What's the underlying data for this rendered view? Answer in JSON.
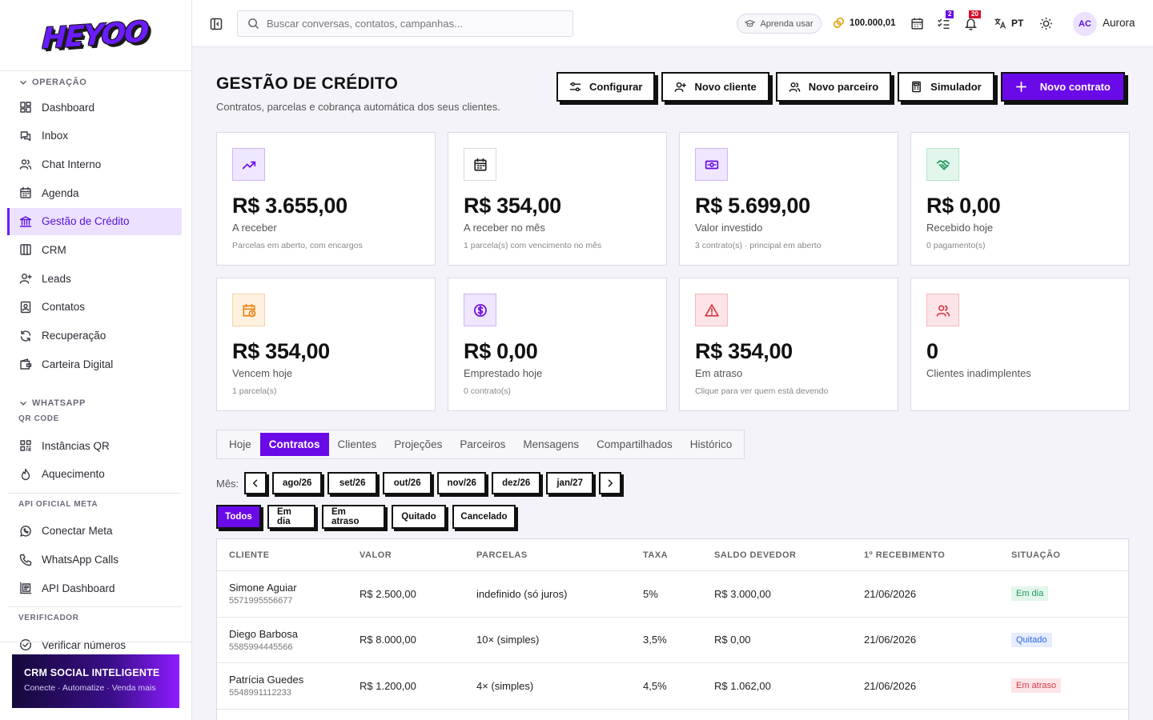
{
  "brand": {
    "logo_text": "HEYOO"
  },
  "sidebar": {
    "sections": [
      {
        "title": "OPERAÇÃO",
        "items": [
          {
            "label": "Dashboard",
            "icon": "dashboard-icon"
          },
          {
            "label": "Inbox",
            "icon": "inbox-icon"
          },
          {
            "label": "Chat Interno",
            "icon": "users-icon"
          },
          {
            "label": "Agenda",
            "icon": "calendar-icon"
          },
          {
            "label": "Gestão de Crédito",
            "icon": "bank-icon",
            "active": true
          },
          {
            "label": "CRM",
            "icon": "columns-icon"
          },
          {
            "label": "Leads",
            "icon": "user-plus-icon"
          },
          {
            "label": "Contatos",
            "icon": "contact-card-icon"
          },
          {
            "label": "Recuperação",
            "icon": "refresh-icon"
          },
          {
            "label": "Carteira Digital",
            "icon": "wallet-icon"
          }
        ]
      },
      {
        "title": "WHATSAPP",
        "subtitle": "QR CODE",
        "items": [
          {
            "label": "Instâncias QR",
            "icon": "qr-code-icon"
          },
          {
            "label": "Aquecimento",
            "icon": "flame-icon"
          }
        ]
      },
      {
        "subtitle": "API OFICIAL META",
        "items": [
          {
            "label": "Conectar Meta",
            "icon": "whatsapp-icon"
          },
          {
            "label": "WhatsApp Calls",
            "icon": "phone-icon"
          },
          {
            "label": "API Dashboard",
            "icon": "api-dashboard-icon"
          }
        ]
      },
      {
        "subtitle": "VERIFICADOR",
        "items": [
          {
            "label": "Verificar números",
            "icon": "check-circle-icon"
          }
        ]
      }
    ],
    "promo": {
      "title": "CRM SOCIAL INTELIGENTE",
      "subtitle": "Conecte · Automatize · Venda mais"
    }
  },
  "topbar": {
    "search_placeholder": "Buscar conversas, contatos, campanhas...",
    "learn_label": "Aprenda usar",
    "coins": "100.000,01",
    "tasks_badge": "2",
    "notifications_badge": "20",
    "language": "PT",
    "avatar_initials": "AC",
    "username": "Aurora",
    "colors": {
      "tasks_badge": "#6a0ae8",
      "notifications_badge": "#d3122e"
    }
  },
  "page": {
    "title": "GESTÃO DE CRÉDITO",
    "subtitle": "Contratos, parcelas e cobrança automática dos seus clientes.",
    "actions": [
      {
        "label": "Configurar",
        "icon": "sliders-icon"
      },
      {
        "label": "Novo cliente",
        "icon": "user-plus-icon"
      },
      {
        "label": "Novo parceiro",
        "icon": "users-icon"
      },
      {
        "label": "Simulador",
        "icon": "calculator-icon"
      },
      {
        "label": "Novo contrato",
        "icon": "plus-icon",
        "primary": true
      }
    ]
  },
  "cards": [
    {
      "value": "R$ 3.655,00",
      "label": "A receber",
      "note": "Parcelas em aberto, com encargos",
      "icon": "trending-up-icon",
      "color": "#6a0ae8",
      "bg": "#efe6ff",
      "border": "#cdb5f7"
    },
    {
      "value": "R$ 354,00",
      "label": "A receber no mês",
      "note": "1 parcela(s) com vencimento no mês",
      "icon": "calendar-icon",
      "color": "#222222",
      "bg": "#ffffff",
      "border": "#dcdae4"
    },
    {
      "value": "R$ 5.699,00",
      "label": "Valor investido",
      "note": "3 contrato(s) · principal em aberto",
      "icon": "banknote-icon",
      "color": "#6a0ae8",
      "bg": "#efe6ff",
      "border": "#cdb5f7"
    },
    {
      "value": "R$ 0,00",
      "label": "Recebido hoje",
      "note": "0 pagamento(s)",
      "icon": "handshake-icon",
      "color": "#1d9a5b",
      "bg": "#e3f6ec",
      "border": "#b6e3cb"
    },
    {
      "value": "R$ 354,00",
      "label": "Vencem hoje",
      "note": "1 parcela(s)",
      "icon": "calendar-clock-icon",
      "color": "#e88417",
      "bg": "#fff1e0",
      "border": "#f6d3a8"
    },
    {
      "value": "R$ 0,00",
      "label": "Emprestado hoje",
      "note": "0 contrato(s)",
      "icon": "dollar-circle-icon",
      "color": "#6a0ae8",
      "bg": "#efe6ff",
      "border": "#cdb5f7"
    },
    {
      "value": "R$ 354,00",
      "label": "Em atraso",
      "note": "Clique para ver quem está devendo",
      "icon": "warning-icon",
      "color": "#d33a4a",
      "bg": "#fde4e6",
      "border": "#f4b8bf"
    },
    {
      "value": "0",
      "label": "Clientes inadimplentes",
      "note": "",
      "icon": "users-icon",
      "color": "#d33a4a",
      "bg": "#fde4e6",
      "border": "#f4b8bf"
    }
  ],
  "tabs": [
    {
      "label": "Hoje"
    },
    {
      "label": "Contratos",
      "active": true
    },
    {
      "label": "Clientes"
    },
    {
      "label": "Projeções"
    },
    {
      "label": "Parceiros"
    },
    {
      "label": "Mensagens"
    },
    {
      "label": "Compartilhados"
    },
    {
      "label": "Histórico"
    }
  ],
  "month_filter": {
    "label": "Mês:",
    "months": [
      "ago/26",
      "set/26",
      "out/26",
      "nov/26",
      "dez/26",
      "jan/27"
    ]
  },
  "status_filters": [
    {
      "label": "Todos",
      "active": true
    },
    {
      "label": "Em dia"
    },
    {
      "label": "Em atraso"
    },
    {
      "label": "Quitado"
    },
    {
      "label": "Cancelado"
    }
  ],
  "table": {
    "headers": [
      "CLIENTE",
      "VALOR",
      "PARCELAS",
      "TAXA",
      "SALDO DEVEDOR",
      "1º RECEBIMENTO",
      "SITUAÇÃO"
    ],
    "rows": [
      {
        "name": "Simone Aguiar",
        "phone": "5571995556677",
        "value": "R$ 2.500,00",
        "installments": "indefinido (só juros)",
        "rate": "5%",
        "balance": "R$ 3.000,00",
        "first": "21/06/2026",
        "status": "Em dia",
        "status_kind": "ok"
      },
      {
        "name": "Diego Barbosa",
        "phone": "5585994445566",
        "value": "R$ 8.000,00",
        "installments": "10× (simples)",
        "rate": "3,5%",
        "balance": "R$ 0,00",
        "first": "21/06/2026",
        "status": "Quitado",
        "status_kind": "paid"
      },
      {
        "name": "Patrícia Guedes",
        "phone": "5548991112233",
        "value": "R$ 1.200,00",
        "installments": "4× (simples)",
        "rate": "4,5%",
        "balance": "R$ 1.062,00",
        "first": "21/06/2026",
        "status": "Em atraso",
        "status_kind": "late"
      }
    ]
  }
}
